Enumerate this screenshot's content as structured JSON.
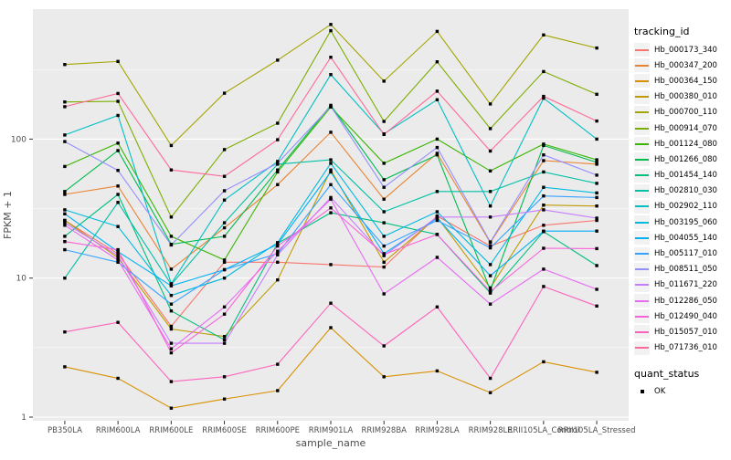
{
  "figure": {
    "background": "#FFFFFF",
    "panel_background": "#EBEBEB",
    "grid_color": "#FFFFFF",
    "tick_color": "#333333",
    "point_color": "#000000",
    "axis_title_color": "#000000",
    "tick_label_color": "#4D4D4D"
  },
  "axes": {
    "y_label": "FPKM + 1",
    "x_label": "sample_name",
    "y_tick_labels": [
      "1",
      "10",
      "100"
    ]
  },
  "legend": {
    "tracking_title": "tracking_id",
    "quant_title": "quant_status",
    "quant_items": [
      {
        "label": "OK",
        "shape": "square",
        "color": "#000000"
      }
    ]
  },
  "chart_data": {
    "type": "line",
    "log_y": true,
    "title": "",
    "xlabel": "sample_name",
    "ylabel": "FPKM + 1",
    "ylim": [
      1,
      700
    ],
    "y_ticks": [
      1,
      10,
      100
    ],
    "minor_grid_at": [
      3.162,
      31.62,
      316.2
    ],
    "grid": true,
    "legend_position": "right",
    "marker": "black-square",
    "categories": [
      "PB350LA",
      "RRIM600LA",
      "RRIM600LE",
      "RRIM600SE",
      "RRIM600PE",
      "RRIM901LA",
      "RRIM928BA",
      "RRIM928LA",
      "RRIM928LE",
      "RRII105LA_Control",
      "RRII105LA_Stressed"
    ],
    "series": [
      {
        "name": "Hb_000173_340",
        "color": "#F8766D",
        "values": [
          26,
          15,
          4.5,
          13,
          13,
          12.5,
          12,
          28,
          17,
          24,
          26
        ]
      },
      {
        "name": "Hb_000347_200",
        "color": "#EA8331",
        "values": [
          40,
          46,
          11.6,
          23,
          47,
          112,
          37,
          79,
          18,
          70,
          66
        ]
      },
      {
        "name": "Hb_000364_150",
        "color": "#D89000",
        "values": [
          2.3,
          1.9,
          1.16,
          1.35,
          1.55,
          4.4,
          1.95,
          2.15,
          1.5,
          2.5,
          2.1
        ]
      },
      {
        "name": "Hb_000380_010",
        "color": "#C09B00",
        "values": [
          26,
          14,
          4.3,
          3.8,
          9.7,
          60,
          13,
          27.5,
          8.5,
          33.5,
          33
        ]
      },
      {
        "name": "Hb_000700_110",
        "color": "#A3A500",
        "values": [
          344,
          362,
          90,
          214,
          370,
          668,
          261,
          595,
          179,
          561,
          452
        ]
      },
      {
        "name": "Hb_000914_070",
        "color": "#7CAE00",
        "values": [
          185,
          187,
          27.5,
          84,
          130,
          603,
          134,
          360,
          119,
          306,
          210
        ]
      },
      {
        "name": "Hb_001124_080",
        "color": "#39B600",
        "values": [
          63.5,
          93.5,
          20,
          13.5,
          58,
          170,
          67,
          100,
          59,
          92,
          71
        ]
      },
      {
        "name": "Hb_001266_080",
        "color": "#00BB4E",
        "values": [
          42,
          82.7,
          17.5,
          20,
          60,
          175,
          51,
          77,
          8.2,
          90,
          68
        ]
      },
      {
        "name": "Hb_001454_140",
        "color": "#00BF7D",
        "values": [
          20,
          40,
          5.8,
          3.6,
          17.8,
          29.5,
          25,
          20.6,
          7.8,
          21.6,
          12.3
        ]
      },
      {
        "name": "Hb_002810_030",
        "color": "#00C1A3",
        "values": [
          10,
          35,
          9.0,
          25,
          66,
          71,
          30,
          42,
          42,
          58,
          48
        ]
      },
      {
        "name": "Hb_002902_110",
        "color": "#00BFC4",
        "values": [
          107,
          148,
          9.1,
          36.4,
          69,
          291,
          109,
          192,
          33,
          197,
          100
        ]
      },
      {
        "name": "Hb_003195_060",
        "color": "#00BAE0",
        "values": [
          31,
          23.5,
          7.5,
          10,
          18,
          67,
          20,
          30,
          12.5,
          45,
          41
        ]
      },
      {
        "name": "Hb_004055_140",
        "color": "#00B0F6",
        "values": [
          29,
          15.5,
          8.8,
          11.5,
          17.5,
          58,
          15,
          27,
          10.4,
          21.8,
          21.8
        ]
      },
      {
        "name": "Hb_005117_010",
        "color": "#35A2FF",
        "values": [
          16,
          13,
          6.5,
          11.5,
          15,
          47,
          17,
          26,
          16.5,
          39,
          38
        ]
      },
      {
        "name": "Hb_008511_050",
        "color": "#9590FF",
        "values": [
          96,
          59.5,
          17.3,
          42.5,
          67,
          172,
          45,
          87,
          18.2,
          77,
          55
        ]
      },
      {
        "name": "Hb_011671_220",
        "color": "#C77CFF",
        "values": [
          25,
          14.5,
          3.4,
          3.4,
          14.7,
          38,
          14.5,
          27.5,
          27.5,
          31,
          27
        ]
      },
      {
        "name": "Hb_012286_050",
        "color": "#E76BF3",
        "values": [
          24,
          13.5,
          3.1,
          6.2,
          15.6,
          37,
          7.7,
          14.1,
          6.5,
          11.6,
          8.3
        ]
      },
      {
        "name": "Hb_012490_040",
        "color": "#FA62DB",
        "values": [
          18.3,
          16,
          2.9,
          5.5,
          17,
          32,
          14.8,
          20.6,
          8.0,
          16.4,
          16.3
        ]
      },
      {
        "name": "Hb_015057_010",
        "color": "#FF62BC",
        "values": [
          4.1,
          4.8,
          1.8,
          1.95,
          2.4,
          6.6,
          3.25,
          6.2,
          1.9,
          8.7,
          6.3
        ]
      },
      {
        "name": "Hb_071736_010",
        "color": "#FF6A98",
        "values": [
          171,
          213,
          60,
          54,
          99,
          388,
          108,
          221,
          82,
          203,
          135
        ]
      }
    ]
  }
}
